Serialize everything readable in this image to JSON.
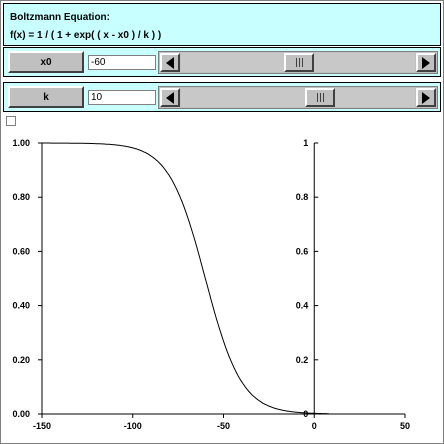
{
  "header": {
    "title": "Boltzmann Equation:",
    "formula": "f(x) = 1 / ( 1 + exp( ( x - x0 ) / k ) )"
  },
  "params": {
    "x0": {
      "label": "x0",
      "value": "-60",
      "slider_fraction": 0.5
    },
    "k": {
      "label": "k",
      "value": "10",
      "slider_fraction": 0.6
    }
  },
  "chart_data": {
    "type": "line",
    "function": "1 / (1 + exp((x - x0) / k))",
    "x0": -60,
    "k": 10,
    "xlim": [
      -150,
      50
    ],
    "ylim": [
      0,
      1
    ],
    "x_ticks": [
      "-150",
      "-100",
      "-50",
      "0",
      "50"
    ],
    "x_tick_values": [
      -150,
      -100,
      -50,
      0,
      50
    ],
    "y_left_ticks": [
      "0.00",
      "0.20",
      "0.40",
      "0.60",
      "0.80",
      "1.00"
    ],
    "y_right_ticks": [
      "0",
      "0.2",
      "0.4",
      "0.6",
      "0.8",
      "1"
    ],
    "y_tick_values": [
      0,
      0.2,
      0.4,
      0.6,
      0.8,
      1.0
    ],
    "x_range_drawn": [
      -150,
      8
    ],
    "grid": false
  }
}
